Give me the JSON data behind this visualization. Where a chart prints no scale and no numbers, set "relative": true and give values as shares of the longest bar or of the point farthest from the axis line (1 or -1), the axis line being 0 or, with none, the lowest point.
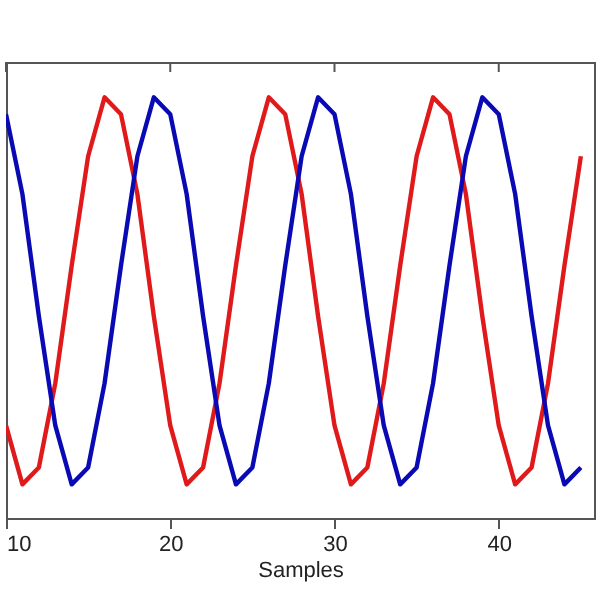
{
  "chart_data": {
    "type": "line",
    "xlabel": "Samples",
    "relative": true,
    "x": [
      10,
      11,
      12,
      13,
      14,
      15,
      16,
      17,
      18,
      19,
      20,
      21,
      22,
      23,
      24,
      25,
      26,
      27,
      28,
      29,
      30,
      31,
      32,
      33,
      34,
      35,
      36,
      37,
      38,
      39,
      40,
      41,
      42,
      43,
      44,
      45
    ],
    "series": [
      {
        "color": "#e01a1a",
        "values": [
          0.22,
          0.08,
          0.12,
          0.32,
          0.6,
          0.86,
          1.0,
          0.96,
          0.77,
          0.48,
          0.22,
          0.08,
          0.12,
          0.32,
          0.6,
          0.86,
          1.0,
          0.96,
          0.77,
          0.48,
          0.22,
          0.08,
          0.12,
          0.32,
          0.6,
          0.86,
          1.0,
          0.96,
          0.77,
          0.48,
          0.22,
          0.08,
          0.12,
          0.32,
          0.6,
          0.86
        ]
      },
      {
        "color": "#0a0ab4",
        "values": [
          0.96,
          0.77,
          0.48,
          0.22,
          0.08,
          0.12,
          0.32,
          0.6,
          0.86,
          1.0,
          0.96,
          0.77,
          0.48,
          0.22,
          0.08,
          0.12,
          0.32,
          0.6,
          0.86,
          1.0,
          0.96,
          0.77,
          0.48,
          0.22,
          0.08,
          0.12,
          0.32,
          0.6,
          0.86,
          1.0,
          0.96,
          0.77,
          0.48,
          0.22,
          0.08,
          0.12
        ]
      }
    ],
    "xlim": [
      10,
      45.8
    ],
    "xticks": [
      10,
      20,
      30,
      40
    ],
    "grid": false,
    "marker": "none",
    "line_style": "solid",
    "tick_labels": "x"
  }
}
